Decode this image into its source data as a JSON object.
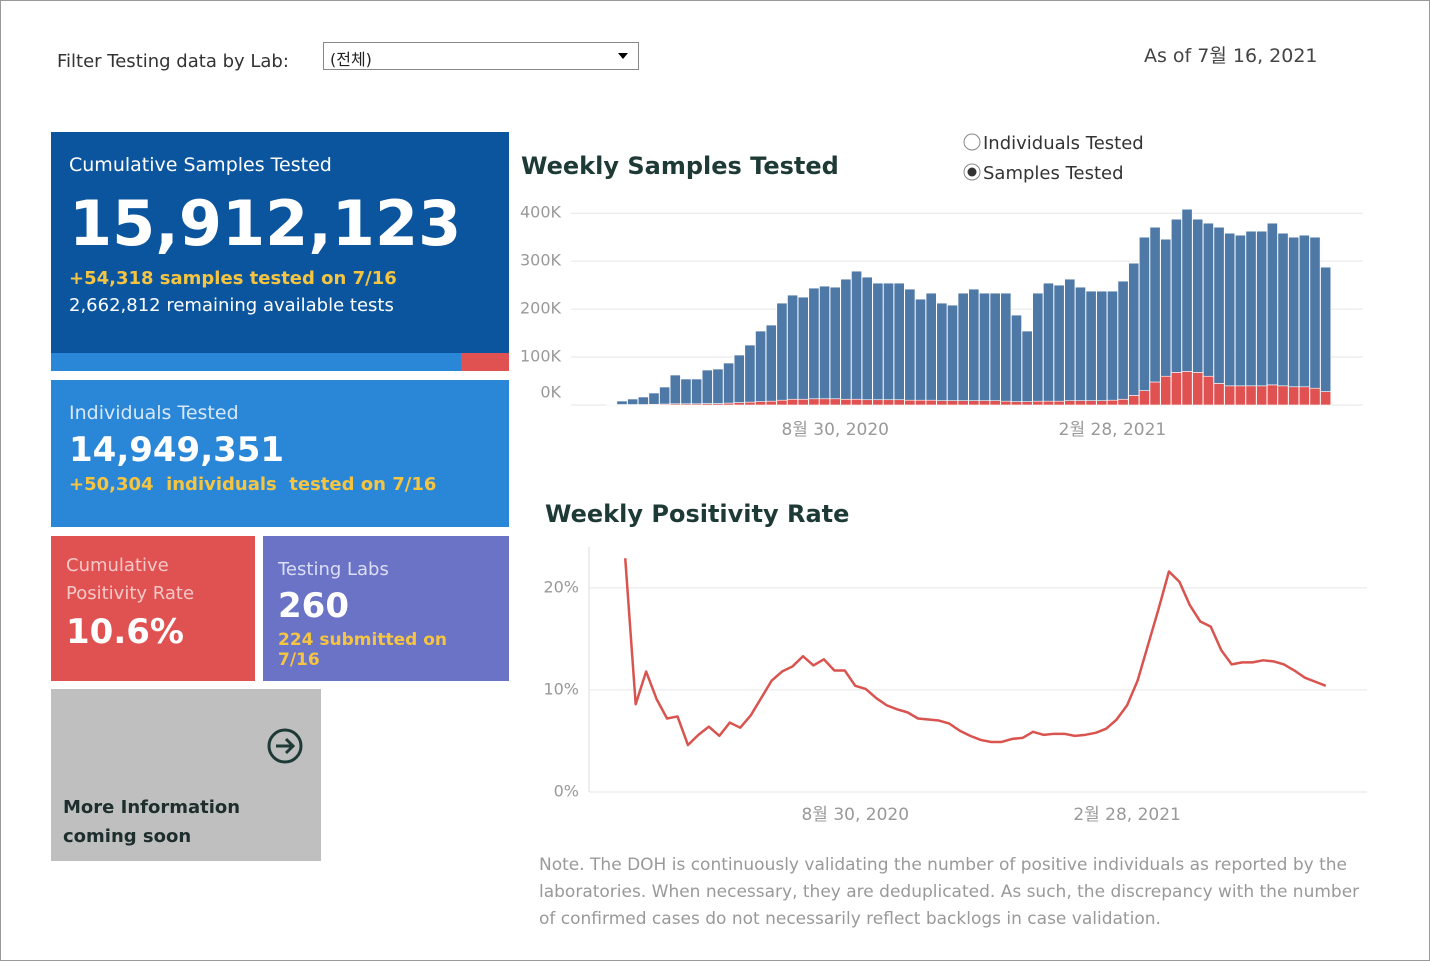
{
  "filter": {
    "label": "Filter Testing data by Lab:",
    "selected": "(전체)"
  },
  "as_of": "As of 7월 16, 2021",
  "cards": {
    "cumulative_samples": {
      "title": "Cumulative Samples Tested",
      "value": "15,912,123",
      "change": "+54,318 samples tested on 7/16",
      "remaining": "2,662,812 remaining available tests"
    },
    "individuals": {
      "title": "Individuals Tested",
      "value": "14,949,351",
      "change": "+50,304  individuals  tested on 7/16"
    },
    "positivity": {
      "title": "Cumulative Positivity Rate",
      "value": "10.6%"
    },
    "labs": {
      "title": "Testing Labs",
      "value": "260",
      "submitted": "224 submitted on 7/16"
    },
    "more_info": {
      "text": "More Information coming soon"
    }
  },
  "toggle": {
    "options": [
      "Individuals Tested",
      "Samples Tested"
    ],
    "selected": "Samples Tested"
  },
  "note": "Note. The DOH is continuously validating the number of positive individuals as reported by the laboratories. When necessary, they are deduplicated. As such, the discrepancy with the number of confirmed cases do not necessarily reflect backlogs in case validation.",
  "chart_data": [
    {
      "type": "bar",
      "stacked": true,
      "title": "Weekly Samples Tested",
      "categories": [
        null,
        null,
        null,
        null,
        null,
        null,
        null,
        null,
        null,
        null,
        null,
        null,
        null,
        null,
        null,
        null,
        null,
        null,
        null,
        null,
        null,
        "8월 30, 2020",
        null,
        null,
        null,
        null,
        null,
        null,
        null,
        null,
        null,
        null,
        null,
        null,
        null,
        null,
        null,
        null,
        null,
        null,
        null,
        null,
        null,
        null,
        null,
        null,
        null,
        "2월 28, 2021",
        null,
        null,
        null,
        null,
        null,
        null,
        null,
        null,
        null,
        null,
        null,
        null,
        null,
        null,
        null,
        null,
        null,
        null,
        null,
        null
      ],
      "series": [
        {
          "color": "#e05252",
          "values": [
            1000,
            1000,
            1000,
            1000,
            1500,
            2000,
            2500,
            2500,
            2500,
            3000,
            3000,
            4000,
            5000,
            6000,
            7000,
            8000,
            10000,
            12000,
            12000,
            13000,
            13000,
            13000,
            12000,
            12000,
            11000,
            11000,
            11000,
            11000,
            10000,
            10000,
            10000,
            9000,
            9000,
            9000,
            9000,
            9000,
            9000,
            8000,
            7000,
            7000,
            8000,
            8000,
            8000,
            9000,
            9000,
            9000,
            9000,
            10000,
            12000,
            20000,
            30000,
            48000,
            60000,
            68000,
            70000,
            68000,
            60000,
            45000,
            40000,
            40000,
            40000,
            40000,
            42000,
            40000,
            38000,
            38000,
            35000,
            28000
          ]
        },
        {
          "color": "#4e79a7",
          "values": [
            1000,
            7300,
            11500,
            15700,
            23500,
            35500,
            60000,
            51700,
            51700,
            69900,
            72000,
            83500,
            99200,
            119000,
            147200,
            158700,
            202500,
            217200,
            213000,
            230800,
            234900,
            232800,
            250500,
            267200,
            255700,
            243200,
            243200,
            243200,
            231700,
            210800,
            223300,
            203500,
            199300,
            224300,
            232700,
            224300,
            224300,
            225300,
            180500,
            147200,
            225300,
            246200,
            242000,
            253500,
            236800,
            228500,
            228500,
            227500,
            246300,
            275800,
            320000,
            322800,
            285800,
            319500,
            338300,
            319500,
            319200,
            325800,
            318300,
            314200,
            322500,
            322500,
            337200,
            318300,
            312000,
            316200,
            315000,
            259500
          ]
        }
      ],
      "ylim": [
        0,
        415000
      ],
      "yticks": [
        {
          "value": 0,
          "label": "0K"
        },
        {
          "value": 100000,
          "label": "100K"
        },
        {
          "value": 200000,
          "label": "200K"
        },
        {
          "value": 300000,
          "label": "300K"
        },
        {
          "value": 400000,
          "label": "400K"
        }
      ],
      "grid": true
    },
    {
      "type": "line",
      "title": "Weekly Positivity Rate",
      "categories": [
        null,
        null,
        null,
        null,
        null,
        null,
        null,
        null,
        null,
        null,
        null,
        null,
        null,
        null,
        null,
        null,
        null,
        null,
        null,
        null,
        null,
        null,
        "8월 30, 2020",
        null,
        null,
        null,
        null,
        null,
        null,
        null,
        null,
        null,
        null,
        null,
        null,
        null,
        null,
        null,
        null,
        null,
        null,
        null,
        null,
        null,
        null,
        null,
        null,
        null,
        "2월 28, 2021",
        null,
        null,
        null,
        null,
        null,
        null,
        null,
        null,
        null,
        null,
        null,
        null,
        null,
        null,
        null,
        null,
        null,
        null,
        null
      ],
      "series": [
        {
          "color": "#d9534f",
          "values": [
            22.9,
            8.6,
            11.8,
            9.1,
            7.2,
            7.4,
            4.6,
            5.6,
            6.4,
            5.5,
            6.8,
            6.3,
            7.5,
            9.2,
            10.9,
            11.8,
            12.3,
            13.3,
            12.4,
            13.0,
            11.9,
            11.9,
            10.4,
            10.1,
            9.2,
            8.5,
            8.1,
            7.8,
            7.2,
            7.1,
            7.0,
            6.7,
            6.0,
            5.5,
            5.1,
            4.9,
            4.9,
            5.2,
            5.3,
            5.9,
            5.6,
            5.7,
            5.7,
            5.5,
            5.6,
            5.8,
            6.2,
            7.1,
            8.5,
            10.9,
            14.4,
            17.9,
            21.6,
            20.6,
            18.3,
            16.7,
            16.2,
            13.9,
            12.5,
            12.7,
            12.7,
            12.9,
            12.8,
            12.5,
            11.9,
            11.2,
            10.8,
            10.4
          ]
        }
      ],
      "ylim": [
        0,
        24
      ],
      "yticks": [
        {
          "value": 0,
          "label": "0%"
        },
        {
          "value": 10,
          "label": "10%"
        },
        {
          "value": 20,
          "label": "20%"
        }
      ],
      "grid": true
    }
  ]
}
